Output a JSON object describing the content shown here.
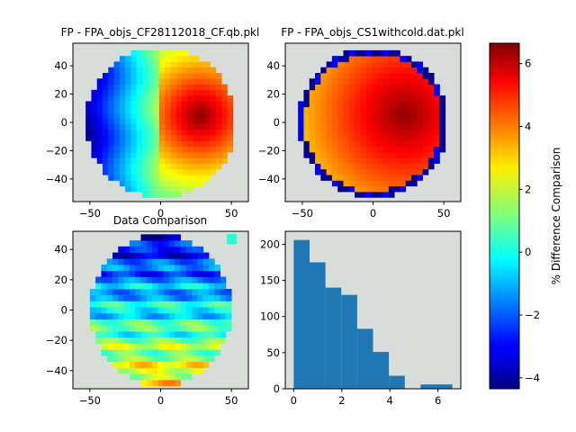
{
  "figure_background": "#ffffff",
  "axes_background": "#d9ddd9",
  "colormap": "jet",
  "chart_data": [
    {
      "type": "heatmap",
      "title": "FP - FPA_objs_CF28112018_CF.qb.pkl",
      "xlabel": "",
      "ylabel": "",
      "xlim": [
        -62,
        62
      ],
      "ylim": [
        -56,
        56
      ],
      "xticks": [
        -50,
        0,
        50
      ],
      "yticks": [
        -40,
        -20,
        0,
        20,
        40
      ],
      "tick_labels_x": [
        "−50",
        "0",
        "50"
      ],
      "tick_labels_y": [
        "−40",
        "−20",
        "0",
        "20",
        "40"
      ],
      "region": {
        "shape": "circle",
        "center": [
          0,
          0
        ],
        "radius": 53
      },
      "value_trend": "increases from left (~-4) to a maximum of ~6.5 near (25, 5), sharp jump across x = 0"
    },
    {
      "type": "heatmap",
      "title": "FP - FPA_objs_CS1withcold.dat.pkl",
      "xlabel": "",
      "ylabel": "",
      "xlim": [
        -62,
        62
      ],
      "ylim": [
        -56,
        56
      ],
      "xticks": [
        -50,
        0,
        50
      ],
      "yticks": [
        -40,
        -20,
        0,
        20,
        40
      ],
      "tick_labels_x": [
        "−50",
        "0",
        "50"
      ],
      "tick_labels_y": [
        "−40",
        "−20",
        "0",
        "20",
        "40"
      ],
      "region": {
        "shape": "circle",
        "center": [
          0,
          0
        ],
        "radius": 53
      },
      "value_trend": "mostly 4.5 to 6.5 with maximum near (20, 5); rim of the disc at about -4"
    },
    {
      "type": "heatmap",
      "title": "Data Comparison",
      "xlabel": "",
      "ylabel": "",
      "xlim": [
        -62,
        62
      ],
      "ylim": [
        -52,
        52
      ],
      "xticks": [
        -50,
        0,
        50
      ],
      "yticks": [
        -40,
        -20,
        0,
        20,
        40
      ],
      "tick_labels_x": [
        "−50",
        "0",
        "50"
      ],
      "tick_labels_y": [
        "−40",
        "−20",
        "0",
        "20",
        "40"
      ],
      "region": {
        "shape": "circle",
        "center": [
          0,
          0
        ],
        "radius": 50
      },
      "value_trend": "about -3.5 at top rising to about 3 to 6 at bottom, banded by rows"
    },
    {
      "type": "bar",
      "title": "",
      "xlabel": "",
      "ylabel": "",
      "xlim": [
        -0.35,
        6.95
      ],
      "ylim": [
        0,
        218
      ],
      "xticks": [
        0,
        2,
        4,
        6
      ],
      "yticks": [
        0,
        50,
        100,
        150,
        200
      ],
      "tick_labels_x": [
        "0",
        "2",
        "4",
        "6"
      ],
      "tick_labels_y": [
        "0",
        "50",
        "100",
        "150",
        "200"
      ],
      "bin_edges": [
        0.0,
        0.66,
        1.32,
        1.98,
        2.64,
        3.3,
        3.96,
        4.62,
        5.28,
        5.94,
        6.6
      ],
      "values": [
        206,
        175,
        140,
        130,
        83,
        51,
        18,
        0,
        6,
        6
      ],
      "color": "#1f77b4"
    }
  ],
  "colorbar": {
    "label": "% Difference Comparison",
    "range": [
      -4.35,
      6.65
    ],
    "ticks": [
      -4,
      -2,
      0,
      2,
      4,
      6
    ],
    "tick_labels": [
      "−4",
      "−2",
      "0",
      "2",
      "4",
      "6"
    ]
  }
}
